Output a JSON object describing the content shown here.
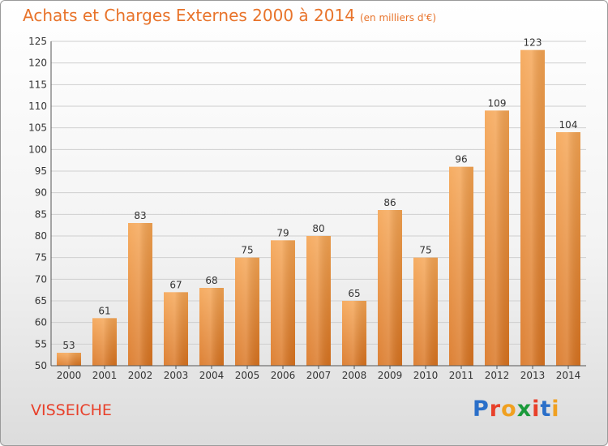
{
  "header": {
    "title": "Achats et Charges Externes 2000 à 2014",
    "unit": "(en milliers d'€)"
  },
  "footer": {
    "commune": "VISSEICHE",
    "logo": {
      "letters": [
        "P",
        "r",
        "o",
        "x",
        "i",
        "t",
        "i"
      ],
      "colors": [
        "#2a6fc9",
        "#e8402a",
        "#f0a020",
        "#1a9a3a",
        "#e8402a",
        "#2a6fc9",
        "#f0a020"
      ]
    }
  },
  "chart_data": {
    "type": "bar",
    "categories": [
      "2000",
      "2001",
      "2002",
      "2003",
      "2004",
      "2005",
      "2006",
      "2007",
      "2008",
      "2009",
      "2010",
      "2011",
      "2012",
      "2013",
      "2014"
    ],
    "values": [
      53,
      61,
      83,
      67,
      68,
      75,
      79,
      80,
      65,
      86,
      75,
      96,
      109,
      123,
      104
    ],
    "ylim": [
      50,
      125
    ],
    "yticks": [
      50,
      55,
      60,
      65,
      70,
      75,
      80,
      85,
      90,
      95,
      100,
      105,
      110,
      115,
      120,
      125
    ],
    "grid": true,
    "bar_color_top": "#f5a452",
    "bar_color_bottom": "#d9731f",
    "title_color": "#e8732a"
  }
}
